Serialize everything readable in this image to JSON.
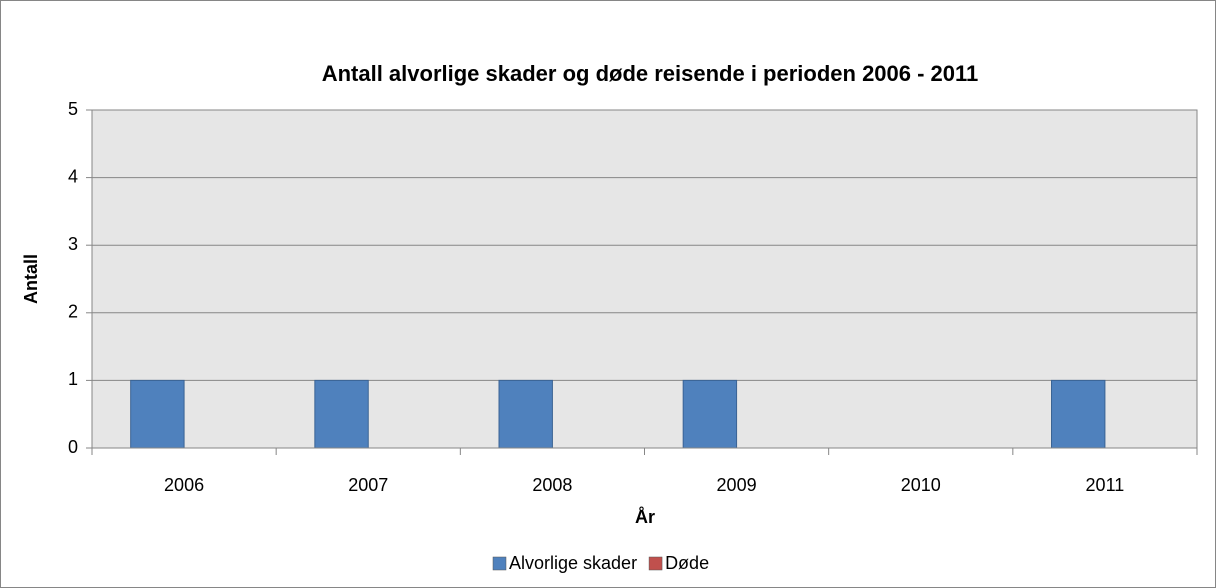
{
  "chart_data": {
    "type": "bar",
    "title": "Antall alvorlige skader og døde reisende i perioden 2006 - 2011",
    "x_label": "År",
    "y_label": "Antall",
    "categories": [
      "2006",
      "2007",
      "2008",
      "2009",
      "2010",
      "2011"
    ],
    "series": [
      {
        "name": "Alvorlige skader",
        "color": "#4f81bd",
        "values": [
          1,
          1,
          1,
          1,
          0,
          1
        ]
      },
      {
        "name": "Døde",
        "color": "#c0504d",
        "values": [
          0,
          0,
          0,
          0,
          0,
          0
        ]
      }
    ],
    "ylim": [
      0,
      5
    ],
    "yticks": [
      0,
      1,
      2,
      3,
      4,
      5
    ],
    "grid": true,
    "legend": "bottom"
  }
}
